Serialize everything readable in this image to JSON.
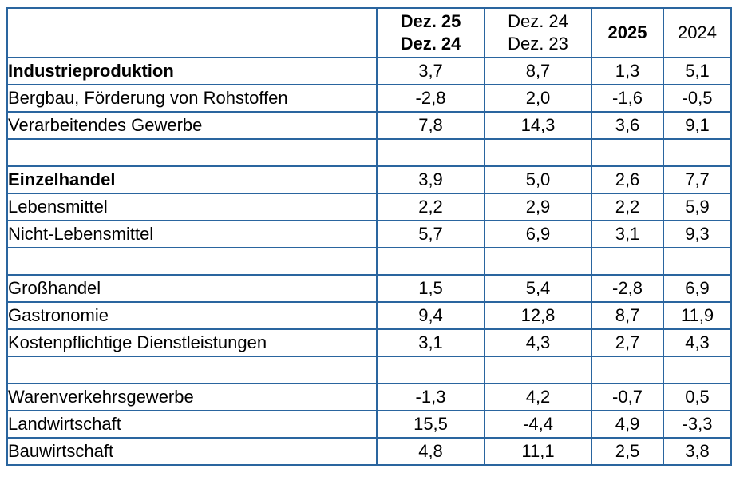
{
  "colors": {
    "border": "#2A659F",
    "text": "#000000",
    "negative": "#FF0000",
    "background": "#FFFFFF"
  },
  "header": {
    "corner": "",
    "col1": {
      "line1": "Dez. 25",
      "line2": "Dez. 24"
    },
    "col2": {
      "line1": "Dez. 24",
      "line2": "Dez. 23"
    },
    "col3": "2025",
    "col4": "2024"
  },
  "rows": [
    {
      "label": "Industrieproduktion",
      "bold": true,
      "spacer": false,
      "values": [
        "3,7",
        "8,7",
        "1,3",
        "5,1"
      ]
    },
    {
      "label": "Bergbau, Förderung von Rohstoffen",
      "bold": false,
      "spacer": false,
      "values": [
        "-2,8",
        "2,0",
        "-1,6",
        "-0,5"
      ]
    },
    {
      "label": "Verarbeitendes Gewerbe",
      "bold": false,
      "spacer": false,
      "values": [
        "7,8",
        "14,3",
        "3,6",
        "9,1"
      ]
    },
    {
      "label": "",
      "bold": false,
      "spacer": true,
      "values": [
        "",
        "",
        "",
        ""
      ]
    },
    {
      "label": "Einzelhandel",
      "bold": true,
      "spacer": false,
      "values": [
        "3,9",
        "5,0",
        "2,6",
        "7,7"
      ]
    },
    {
      "label": "Lebensmittel",
      "bold": false,
      "spacer": false,
      "values": [
        "2,2",
        "2,9",
        "2,2",
        "5,9"
      ]
    },
    {
      "label": "Nicht-Lebensmittel",
      "bold": false,
      "spacer": false,
      "values": [
        "5,7",
        "6,9",
        "3,1",
        "9,3"
      ]
    },
    {
      "label": "",
      "bold": false,
      "spacer": true,
      "values": [
        "",
        "",
        "",
        ""
      ]
    },
    {
      "label": "Großhandel",
      "bold": false,
      "spacer": false,
      "values": [
        "1,5",
        "5,4",
        "-2,8",
        "6,9"
      ]
    },
    {
      "label": "Gastronomie",
      "bold": false,
      "spacer": false,
      "values": [
        "9,4",
        "12,8",
        "8,7",
        "11,9"
      ]
    },
    {
      "label": "Kostenpflichtige Dienstleistungen",
      "bold": false,
      "spacer": false,
      "values": [
        "3,1",
        "4,3",
        "2,7",
        "4,3"
      ]
    },
    {
      "label": "",
      "bold": false,
      "spacer": true,
      "values": [
        "",
        "",
        "",
        ""
      ]
    },
    {
      "label": "Warenverkehrsgewerbe",
      "bold": false,
      "spacer": false,
      "values": [
        "-1,3",
        "4,2",
        "-0,7",
        "0,5"
      ]
    },
    {
      "label": "Landwirtschaft",
      "bold": false,
      "spacer": false,
      "values": [
        "15,5",
        "-4,4",
        "4,9",
        "-3,3"
      ]
    },
    {
      "label": "Bauwirtschaft",
      "bold": false,
      "spacer": false,
      "values": [
        "4,8",
        "11,1",
        "2,5",
        "3,8"
      ]
    }
  ],
  "chart_data": {
    "type": "table",
    "columns": [
      "",
      "Dez. 25 / Dez. 24",
      "Dez. 24 / Dez. 23",
      "2025",
      "2024"
    ],
    "rows": [
      {
        "label": "Industrieproduktion",
        "values": [
          3.7,
          8.7,
          1.3,
          5.1
        ]
      },
      {
        "label": "Bergbau, Förderung von Rohstoffen",
        "values": [
          -2.8,
          2.0,
          -1.6,
          -0.5
        ]
      },
      {
        "label": "Verarbeitendes Gewerbe",
        "values": [
          7.8,
          14.3,
          3.6,
          9.1
        ]
      },
      {
        "label": "Einzelhandel",
        "values": [
          3.9,
          5.0,
          2.6,
          7.7
        ]
      },
      {
        "label": "Lebensmittel",
        "values": [
          2.2,
          2.9,
          2.2,
          5.9
        ]
      },
      {
        "label": "Nicht-Lebensmittel",
        "values": [
          5.7,
          6.9,
          3.1,
          9.3
        ]
      },
      {
        "label": "Großhandel",
        "values": [
          1.5,
          5.4,
          -2.8,
          6.9
        ]
      },
      {
        "label": "Gastronomie",
        "values": [
          9.4,
          12.8,
          8.7,
          11.9
        ]
      },
      {
        "label": "Kostenpflichtige Dienstleistungen",
        "values": [
          3.1,
          4.3,
          2.7,
          4.3
        ]
      },
      {
        "label": "Warenverkehrsgewerbe",
        "values": [
          -1.3,
          4.2,
          -0.7,
          0.5
        ]
      },
      {
        "label": "Landwirtschaft",
        "values": [
          15.5,
          -4.4,
          4.9,
          -3.3
        ]
      },
      {
        "label": "Bauwirtschaft",
        "values": [
          4.8,
          11.1,
          2.5,
          3.8
        ]
      }
    ],
    "layout_hints": {
      "bold_rows": [
        "Industrieproduktion",
        "Einzelhandel"
      ],
      "bold_columns": [
        "Dez. 25 / Dez. 24",
        "2025"
      ],
      "negative_values_color": "#FF0000",
      "grid": true
    }
  }
}
